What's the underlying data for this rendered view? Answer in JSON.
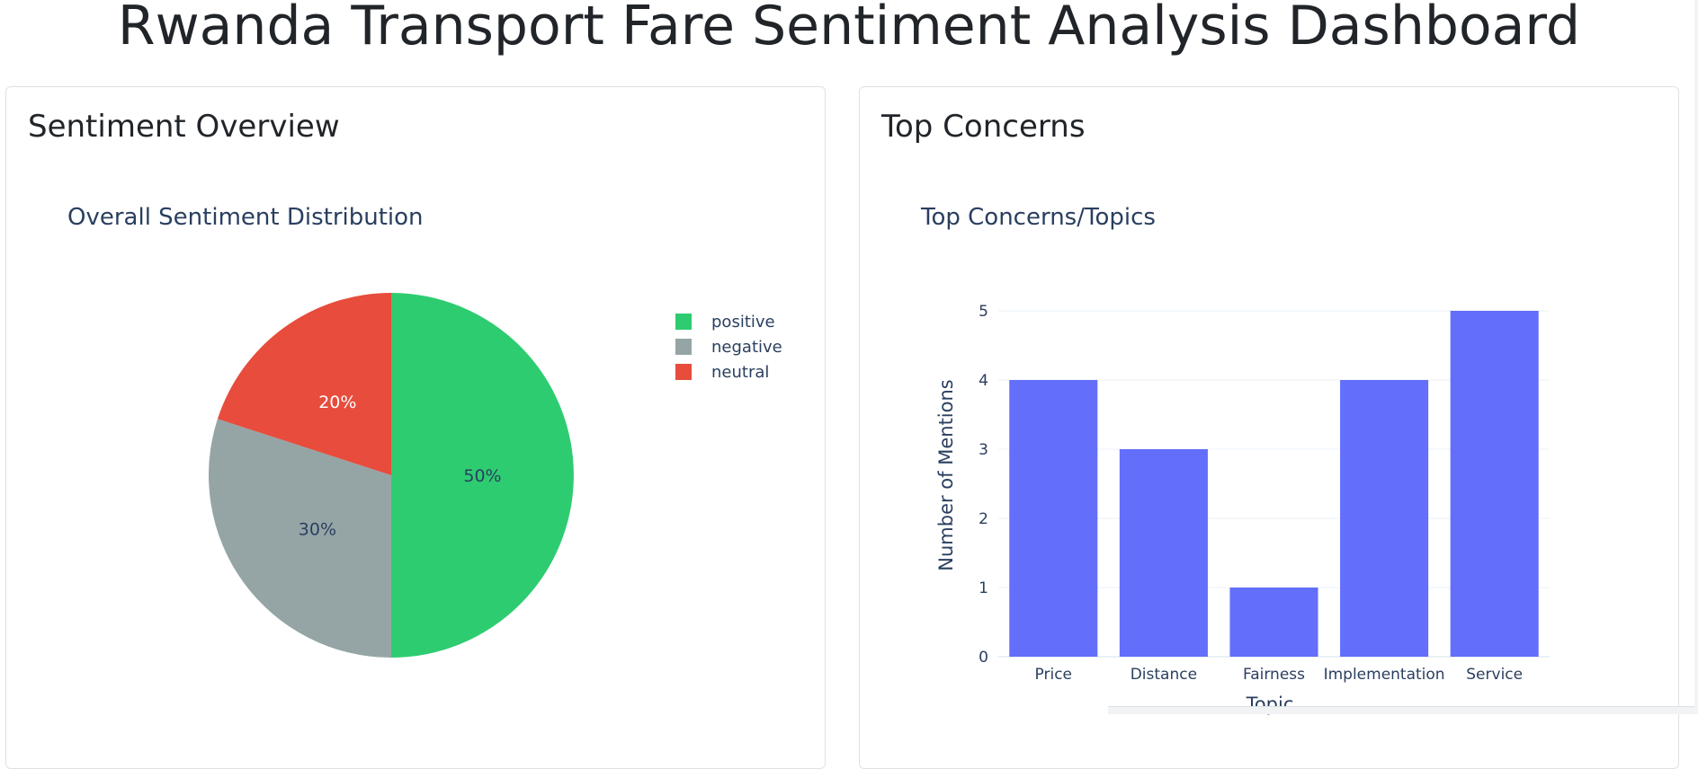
{
  "page": {
    "title": "Rwanda Transport Fare Sentiment Analysis Dashboard"
  },
  "cards": {
    "sentiment": {
      "header": "Sentiment Overview"
    },
    "concerns": {
      "header": "Top Concerns"
    }
  },
  "chart_data": [
    {
      "type": "pie",
      "title": "Overall Sentiment Distribution",
      "slices": [
        {
          "label": "positive",
          "value": 50,
          "display": "50%",
          "color": "#2ecc71",
          "text_color": "#2a3f5f"
        },
        {
          "label": "negative",
          "value": 30,
          "display": "30%",
          "color": "#95a5a6",
          "text_color": "#2a3f5f"
        },
        {
          "label": "neutral",
          "value": 20,
          "display": "20%",
          "color": "#e74c3c",
          "text_color": "#ffffff"
        }
      ],
      "legend_position": "top-right"
    },
    {
      "type": "bar",
      "title": "Top Concerns/Topics",
      "categories": [
        "Price",
        "Distance",
        "Fairness",
        "Implementation",
        "Service"
      ],
      "values": [
        4,
        3,
        1,
        4,
        5
      ],
      "xlabel": "Topic",
      "ylabel": "Number of Mentions",
      "ylim": [
        0,
        5
      ],
      "yticks": [
        0,
        1,
        2,
        3,
        4,
        5
      ],
      "color": "#636efa",
      "grid": true
    }
  ]
}
